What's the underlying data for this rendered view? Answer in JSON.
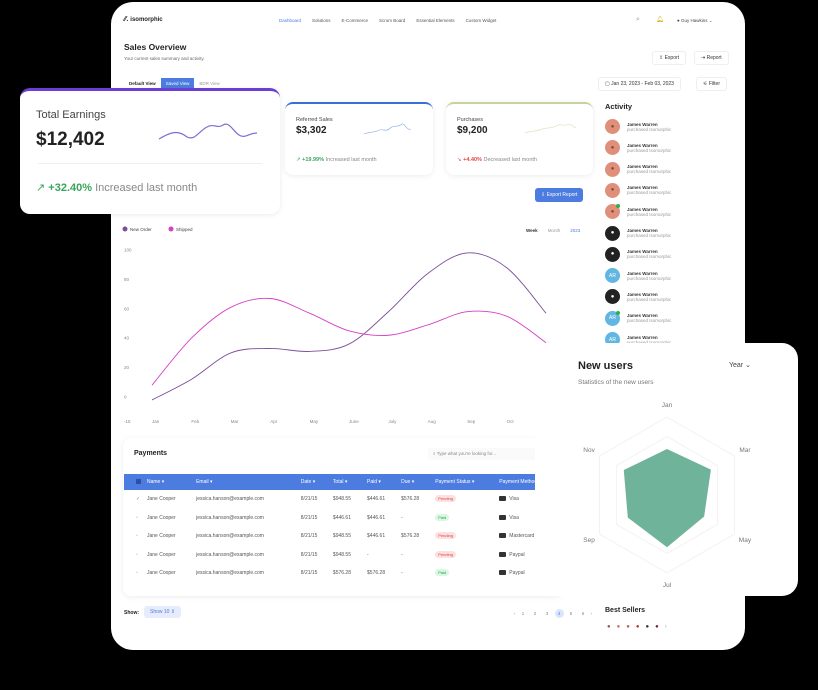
{
  "header": {
    "logo": "isomorphic",
    "nav": [
      "Dashboard",
      "Solutions",
      "E-Commerce",
      "Scrum Board",
      "Essential Elements",
      "Custom Widget"
    ],
    "active_nav": 0,
    "user": "Guy Hawkins"
  },
  "page": {
    "title": "Sales Overview",
    "subtitle": "Your current sales summary and activity.",
    "export": "Export",
    "report": "Report",
    "views": [
      "Default View",
      "Saved View",
      "BDR View"
    ],
    "active_view": 1,
    "date_range": "Jan 23, 2023 - Feb 03, 2023",
    "filter": "Filter",
    "export_report": "Export Report"
  },
  "stats": [
    {
      "label": "Total Earnings",
      "value": "$12,402",
      "change": "+32.40%",
      "note": "Increased last month",
      "trend": "up",
      "accent": "#6b3fd6"
    },
    {
      "label": "Referred Sales",
      "value": "$3,302",
      "change": "+19.99%",
      "note": "Increased last month",
      "trend": "up",
      "accent": "#3b6fd6"
    },
    {
      "label": "Purchases",
      "value": "$9,200",
      "change": "+4.40%",
      "note": "Decreased last month",
      "trend": "down",
      "accent": "#c5d49a"
    }
  ],
  "chart_data": {
    "type": "line",
    "legend": [
      "New Order",
      "Shipped"
    ],
    "legend_placement": "top-left",
    "periods": [
      "Week",
      "Month",
      "2023"
    ],
    "active_period": 2,
    "categories": [
      "Jan",
      "Feb",
      "Mar",
      "Apr",
      "May",
      "June",
      "July",
      "Aug",
      "Sep",
      "Oct",
      "Nov"
    ],
    "x_labels": [
      "Jan",
      "Feb",
      "Mar",
      "Apr",
      "May",
      "June",
      "July",
      "Aug",
      "Sep",
      "Oct"
    ],
    "yticks": [
      100,
      80,
      60,
      40,
      20,
      0,
      -15
    ],
    "ylim": [
      -15,
      100
    ],
    "series": [
      {
        "name": "New Order",
        "color": "#7b4f9a",
        "values": [
          -2,
          12,
          30,
          33,
          31,
          36,
          58,
          84,
          98,
          88,
          57
        ]
      },
      {
        "name": "Shipped",
        "color": "#d63fc6",
        "values": [
          8,
          40,
          61,
          67,
          57,
          45,
          42,
          49,
          58,
          55,
          37
        ]
      }
    ]
  },
  "activity": {
    "title": "Activity",
    "items": [
      {
        "name": "James Warren",
        "desc": "purchased Isomorphic",
        "avatar": "photo"
      },
      {
        "name": "James Warren",
        "desc": "purchased Isomorphic",
        "avatar": "photo"
      },
      {
        "name": "James Warren",
        "desc": "purchased Isomorphic",
        "avatar": "photo"
      },
      {
        "name": "James Warren",
        "desc": "purchased Isomorphic",
        "avatar": "photo"
      },
      {
        "name": "James Warren",
        "desc": "purchased Isomorphic",
        "avatar": "photo",
        "online": true
      },
      {
        "name": "James Warren",
        "desc": "purchased Isomorphic",
        "avatar": "dark"
      },
      {
        "name": "James Warren",
        "desc": "purchased Isomorphic",
        "avatar": "dark"
      },
      {
        "name": "James Warren",
        "desc": "purchased Isomorphic",
        "avatar": "initials",
        "initials": "AR"
      },
      {
        "name": "James Warren",
        "desc": "purchased Isomorphic",
        "avatar": "dark"
      },
      {
        "name": "James Warren",
        "desc": "purchased Isomorphic",
        "avatar": "initials",
        "initials": "AR",
        "online": true
      },
      {
        "name": "James Warren",
        "desc": "purchased Isomorphic",
        "avatar": "initials",
        "initials": "AR"
      }
    ]
  },
  "payments": {
    "title": "Payments",
    "search_placeholder": "Type what you're looking for...",
    "columns": [
      "Name",
      "Email",
      "Date",
      "Total",
      "Paid",
      "Due",
      "Payment Status",
      "Payment Method"
    ],
    "rows": [
      {
        "checked": true,
        "name": "Jane Cooper",
        "email": "jessica.hanson@example.com",
        "date": "8/21/15",
        "total": "$948.55",
        "paid": "$446.61",
        "due": "$576.28",
        "status": "Pending",
        "method": "Visa"
      },
      {
        "checked": false,
        "name": "Jane Cooper",
        "email": "jessica.hanson@example.com",
        "date": "8/21/15",
        "total": "$446.61",
        "paid": "$446.61",
        "due": "-",
        "status": "Paid",
        "method": "Visa"
      },
      {
        "checked": false,
        "name": "Jane Cooper",
        "email": "jessica.hanson@example.com",
        "date": "8/21/15",
        "total": "$948.55",
        "paid": "$446.61",
        "due": "$576.28",
        "status": "Pending",
        "method": "Mastercard"
      },
      {
        "checked": false,
        "name": "Jane Cooper",
        "email": "jessica.hanson@example.com",
        "date": "8/21/15",
        "total": "$948.55",
        "paid": "-",
        "due": "-",
        "status": "Pending",
        "method": "Paypal"
      },
      {
        "checked": false,
        "name": "Jane Cooper",
        "email": "jessica.hanson@example.com",
        "date": "8/21/15",
        "total": "$576.28",
        "paid": "$576.28",
        "due": "-",
        "status": "Paid",
        "method": "Paypal"
      }
    ],
    "show_label": "Show:",
    "show_value": "Show 10",
    "pages": [
      "1",
      "2",
      "3",
      "4",
      "5",
      "6"
    ],
    "active_page": 3
  },
  "new_users": {
    "title": "New users",
    "subtitle": "Statistics of the new users",
    "period": "Year",
    "color": "#6fb39a",
    "chart_data": {
      "type": "radar",
      "axes": [
        "Jan",
        "Mar",
        "May",
        "Jul",
        "Sep",
        "Nov"
      ],
      "values": [
        59,
        65,
        55,
        67,
        58,
        64
      ],
      "max": 100
    }
  },
  "best_sellers": {
    "title": "Best Sellers",
    "count": 6
  }
}
